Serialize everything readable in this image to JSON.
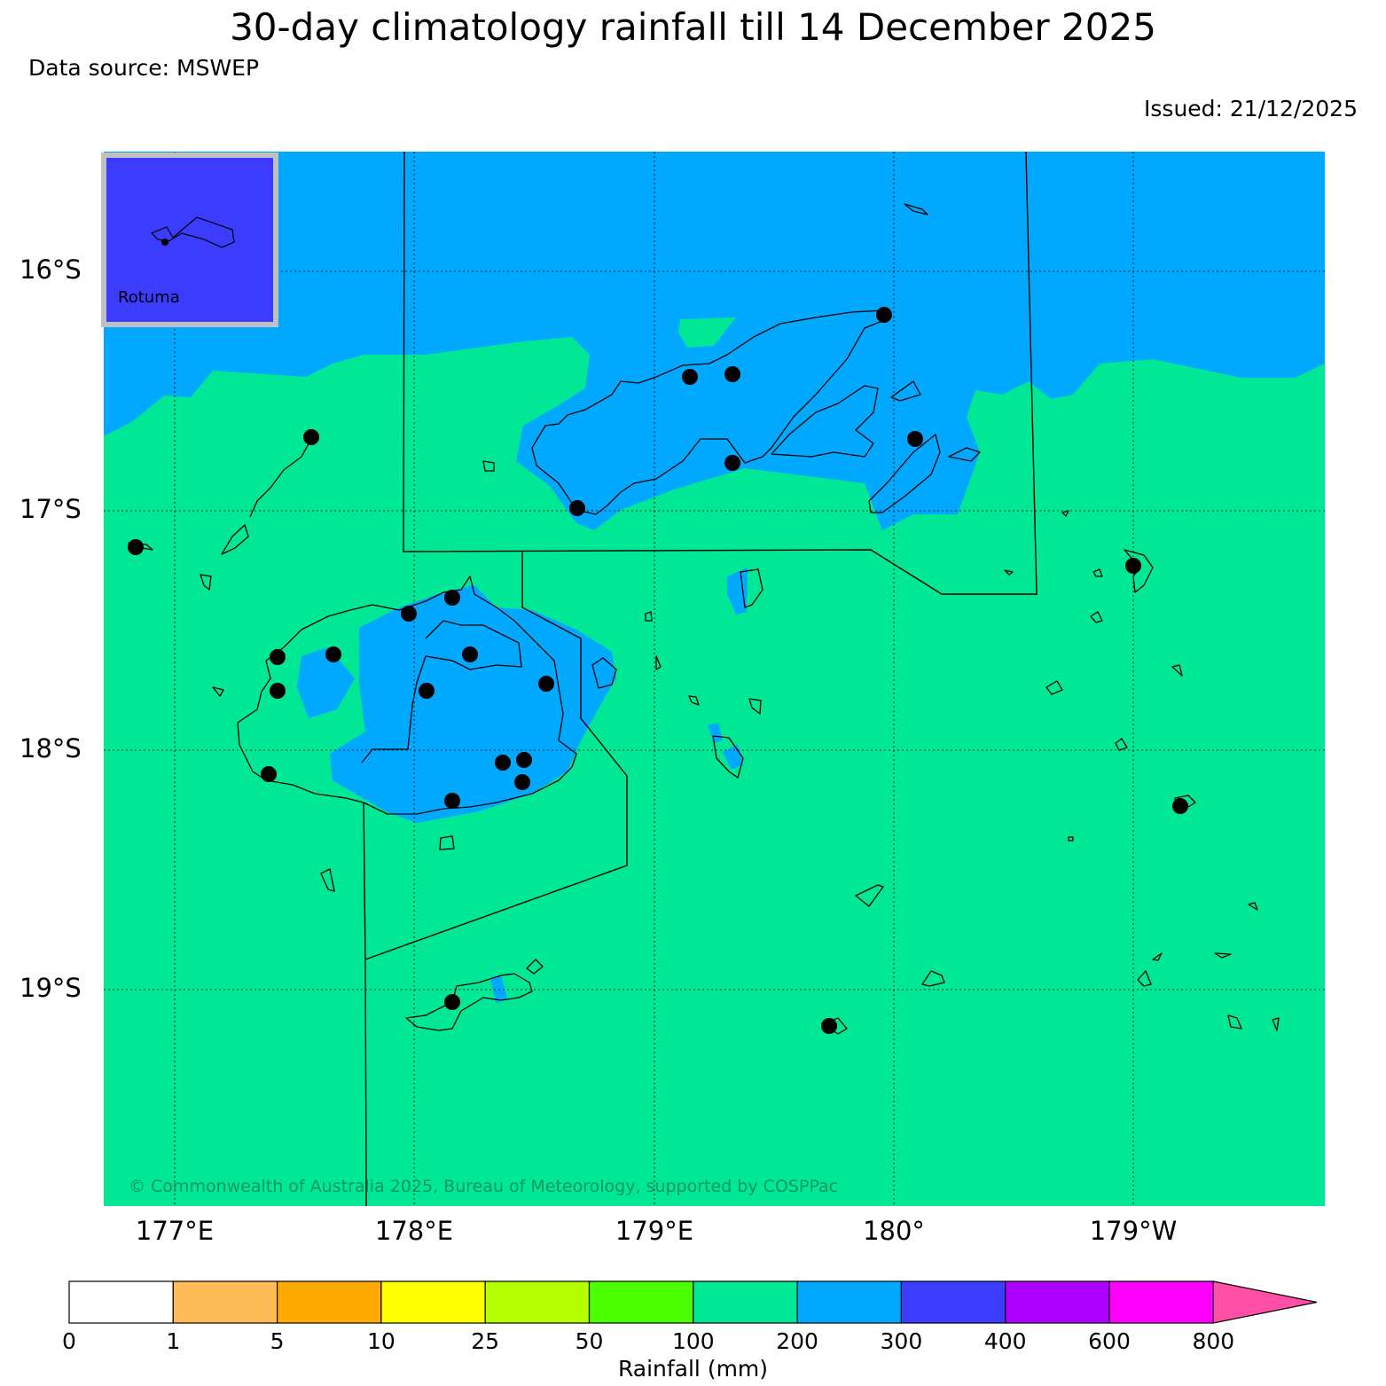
{
  "title": "30-day climatology rainfall till 14 December 2025",
  "data_source": "Data source: MSWEP",
  "issued": "Issued: 21/12/2025",
  "inset": {
    "label": "Rotuma"
  },
  "axes": {
    "latitudes": [
      "16°S",
      "17°S",
      "18°S",
      "19°S"
    ],
    "longitudes": [
      "177°E",
      "178°E",
      "179°E",
      "180°",
      "179°W"
    ]
  },
  "copyright": "© Commonwealth of Australia 2025, Bureau of Meteorology, supported by COSPPac",
  "colorbar": {
    "label": "Rainfall (mm)",
    "ticks": [
      "0",
      "1",
      "5",
      "10",
      "25",
      "50",
      "100",
      "200",
      "300",
      "400",
      "600",
      "800"
    ],
    "colors": [
      "#ffffff",
      "#ffbb55",
      "#ffaa00",
      "#ffff00",
      "#b4ff00",
      "#4bff00",
      "#00e795",
      "#00a8ff",
      "#3c3cff",
      "#ae00ff",
      "#ff00ff",
      "#ff4fa6"
    ]
  },
  "colors": {
    "low_band": "#00e795",
    "high_band": "#00a8ff",
    "inset_fill": "#3c3cff",
    "inset_border": "#c0c0c0"
  }
}
